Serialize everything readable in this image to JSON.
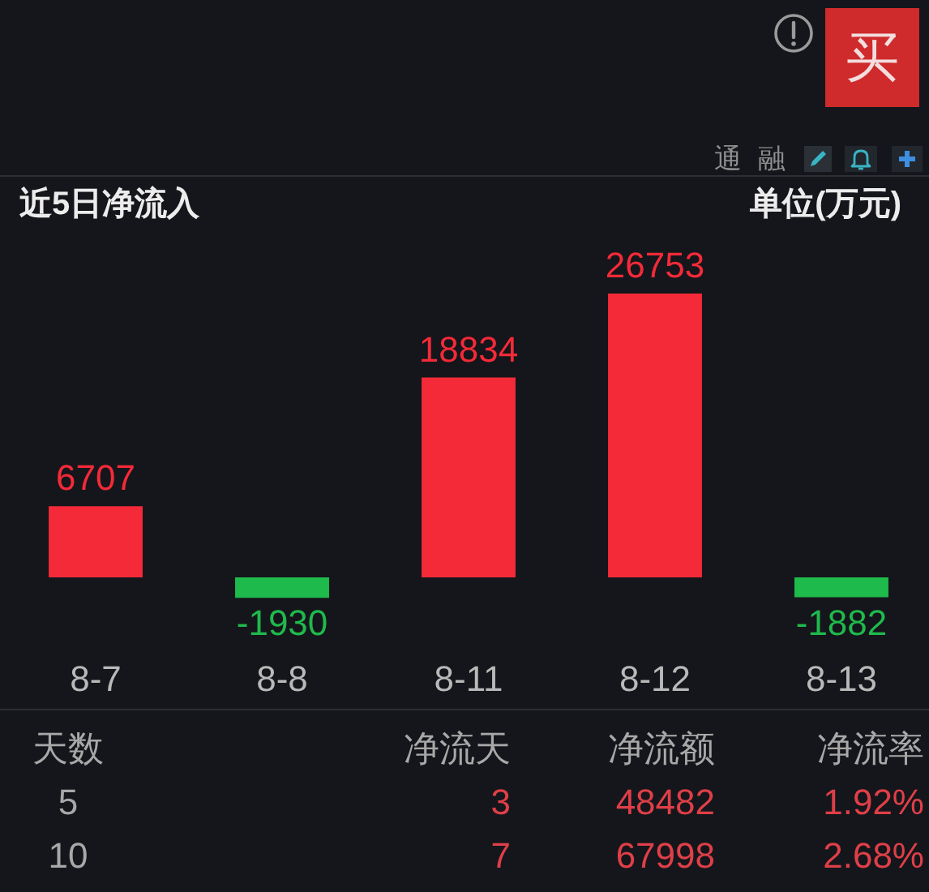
{
  "chart_data": [
    {
      "type": "other",
      "annotations": [
        "买",
        "通",
        "融"
      ]
    },
    {
      "type": "bar",
      "title": "近5日净流入",
      "annotations": [
        "单位(万元)"
      ],
      "categories": [
        "8-7",
        "8-8",
        "8-11",
        "8-12",
        "8-13"
      ],
      "values": [
        6707,
        -1930,
        18834,
        26753,
        -1882
      ],
      "colors": [
        "#f42a38",
        "#1fba4c",
        "#f42a38",
        "#f42a38",
        "#1fba4c"
      ],
      "data_labels": true,
      "tick_labels": "x"
    },
    {
      "type": "other",
      "annotations": [
        "天数",
        "净流天",
        "净流额",
        "净流率",
        "5",
        "3",
        "48482",
        "1.92%",
        "10",
        "7",
        "67998",
        "2.68%"
      ]
    }
  ]
}
